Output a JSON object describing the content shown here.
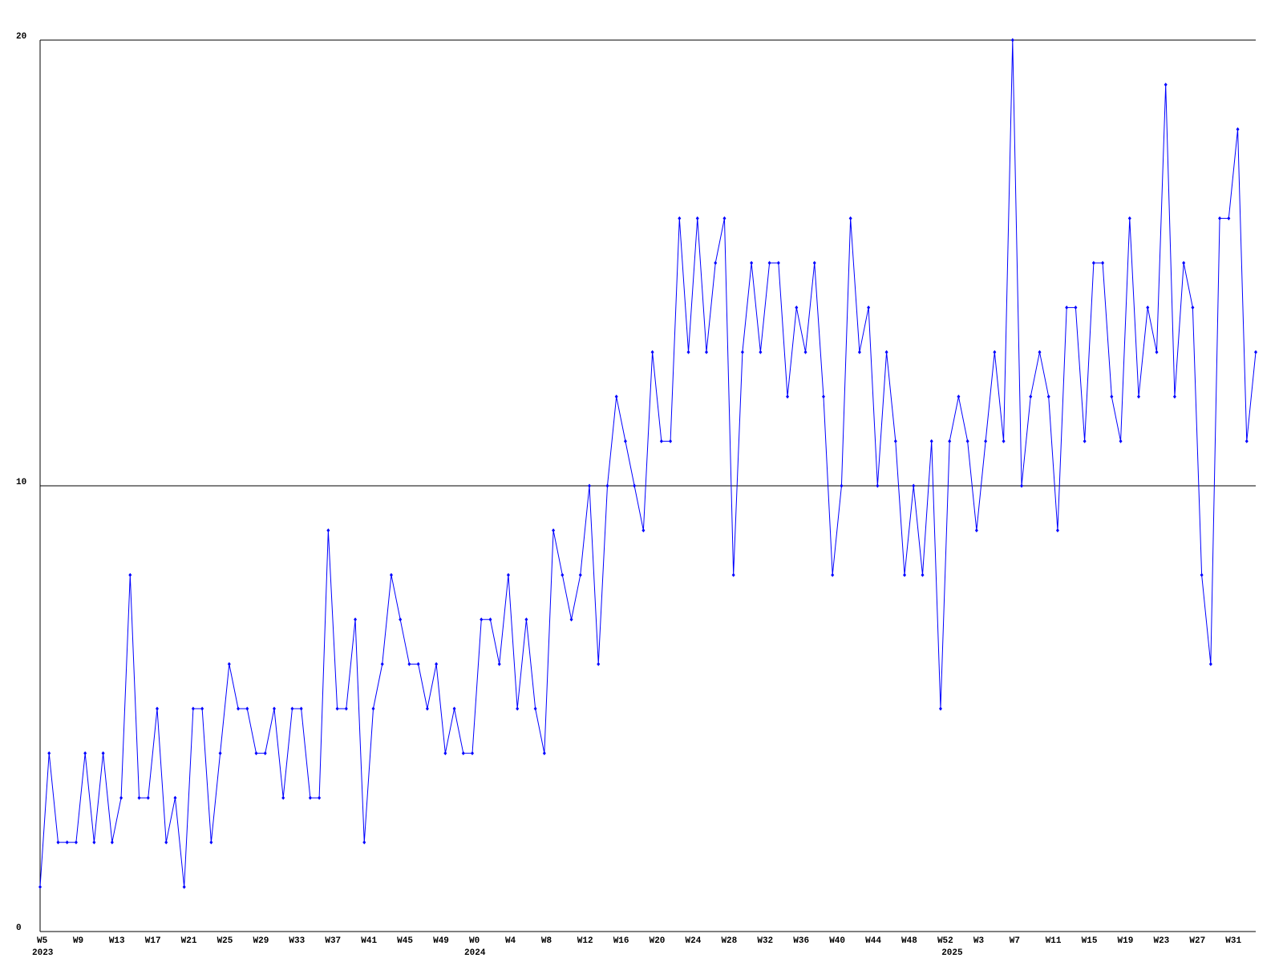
{
  "chart_data": {
    "type": "line",
    "categories": [
      "W5",
      null,
      null,
      null,
      "W9",
      null,
      null,
      null,
      "W13",
      null,
      null,
      null,
      "W17",
      null,
      null,
      null,
      "W21",
      null,
      null,
      null,
      "W25",
      null,
      null,
      null,
      "W29",
      null,
      null,
      null,
      "W33",
      null,
      null,
      null,
      "W37",
      null,
      null,
      null,
      "W41",
      null,
      null,
      null,
      "W45",
      null,
      null,
      null,
      "W49",
      null,
      null,
      null,
      "W0",
      null,
      null,
      null,
      "W4",
      null,
      null,
      null,
      "W8",
      null,
      null,
      null,
      "W12",
      null,
      null,
      null,
      "W16",
      null,
      null,
      null,
      "W20",
      null,
      null,
      null,
      "W24",
      null,
      null,
      null,
      "W28",
      null,
      null,
      null,
      "W32",
      null,
      null,
      null,
      "W36",
      null,
      null,
      null,
      "W40",
      null,
      null,
      null,
      "W44",
      null,
      null,
      null,
      "W48",
      null,
      null,
      null,
      "W52",
      null,
      null,
      null,
      "W3",
      null,
      null,
      null,
      "W7",
      null,
      null,
      null,
      "W11",
      null,
      null,
      null,
      "W15",
      null,
      null,
      null,
      "W19",
      null,
      null,
      null,
      "W23",
      null,
      null,
      null,
      "W27",
      null,
      null,
      null,
      "W31",
      null,
      null,
      null
    ],
    "year_categories": [
      "2023",
      null,
      null,
      null,
      null,
      null,
      null,
      null,
      null,
      null,
      null,
      null,
      null,
      null,
      null,
      null,
      null,
      null,
      null,
      null,
      null,
      null,
      null,
      null,
      null,
      null,
      null,
      null,
      null,
      null,
      null,
      null,
      null,
      null,
      null,
      null,
      null,
      null,
      null,
      null,
      null,
      null,
      null,
      null,
      null,
      null,
      null,
      null,
      "2024",
      null,
      null,
      null,
      null,
      null,
      null,
      null,
      null,
      null,
      null,
      null,
      null,
      null,
      null,
      null,
      null,
      null,
      null,
      null,
      null,
      null,
      null,
      null,
      null,
      null,
      null,
      null,
      null,
      null,
      null,
      null,
      null,
      null,
      null,
      null,
      null,
      null,
      null,
      null,
      null,
      null,
      null,
      null,
      null,
      null,
      null,
      null,
      null,
      null,
      null,
      null,
      null,
      "2025",
      null,
      null,
      null,
      null,
      null,
      null,
      null,
      null,
      null,
      null,
      null,
      null,
      null,
      null,
      null,
      null,
      null,
      null,
      null,
      null,
      null,
      null,
      null,
      null,
      null,
      null,
      null,
      null,
      null,
      null,
      null,
      null,
      null
    ],
    "series": [
      {
        "color": "#0000ff",
        "values": [
          1,
          4,
          2,
          2,
          2,
          4,
          2,
          4,
          2,
          3,
          8,
          3,
          3,
          5,
          2,
          3,
          1,
          5,
          5,
          2,
          4,
          6,
          5,
          5,
          4,
          4,
          5,
          3,
          5,
          5,
          3,
          3,
          9,
          5,
          5,
          7,
          2,
          5,
          6,
          8,
          7,
          6,
          6,
          5,
          6,
          4,
          5,
          4,
          4,
          7,
          7,
          6,
          8,
          5,
          7,
          5,
          4,
          9,
          8,
          7,
          8,
          10,
          6,
          10,
          12,
          11,
          10,
          9,
          13,
          11,
          11,
          16,
          13,
          16,
          13,
          15,
          16,
          8,
          13,
          15,
          13,
          15,
          15,
          12,
          14,
          13,
          15,
          12,
          8,
          10,
          16,
          13,
          14,
          10,
          13,
          11,
          8,
          10,
          8,
          11,
          5,
          11,
          12,
          11,
          9,
          11,
          13,
          11,
          20,
          10,
          12,
          13,
          12,
          9,
          14,
          14,
          11,
          15,
          15,
          12,
          11,
          16,
          12,
          14,
          13,
          19,
          12,
          15,
          14,
          8,
          6,
          16,
          16,
          18,
          11,
          13
        ]
      }
    ],
    "ylim": [
      0,
      20
    ],
    "yticks": [
      0,
      10,
      20
    ],
    "grid": true
  }
}
